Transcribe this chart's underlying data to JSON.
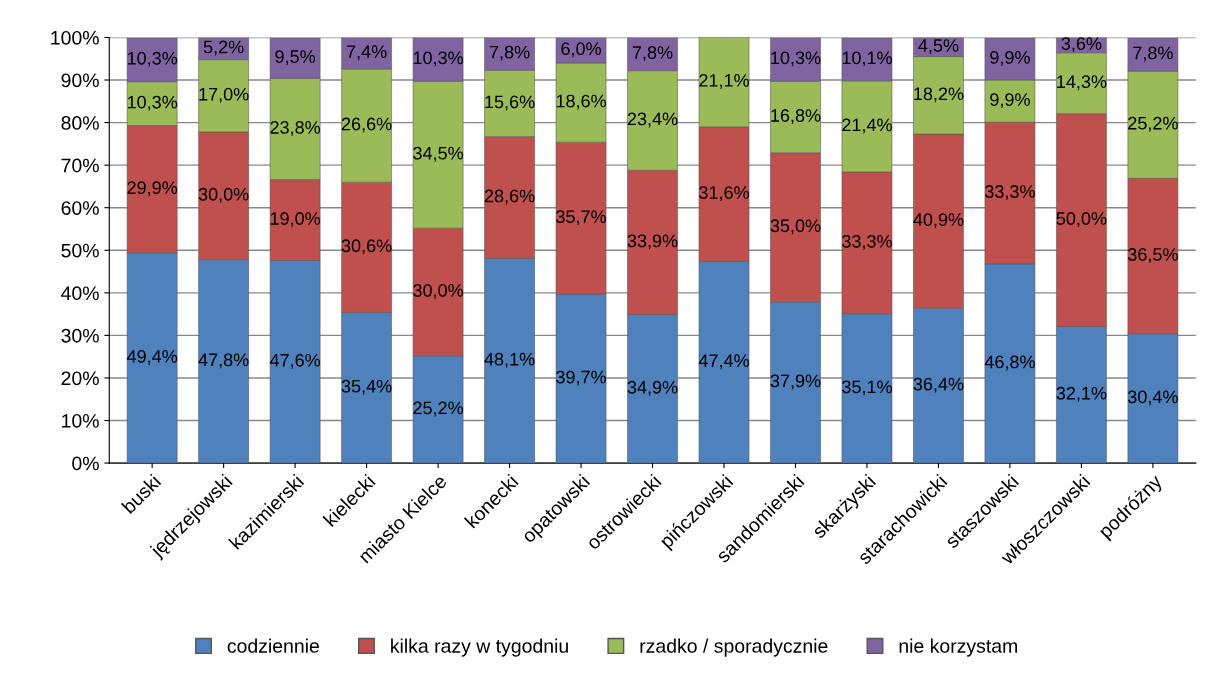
{
  "chart_data": {
    "type": "bar",
    "stacked": true,
    "categories": [
      "buski",
      "jędrzejowski",
      "kazimierski",
      "kielecki",
      "miasto Kielce",
      "konecki",
      "opatowski",
      "ostrowiecki",
      "pińczowski",
      "sandomierski",
      "skarżyski",
      "starachowicki",
      "staszowski",
      "włoszczowski",
      "podróżny"
    ],
    "series": [
      {
        "name": "codziennie",
        "color": "#4f81bd",
        "values": [
          49.4,
          47.8,
          47.6,
          35.4,
          25.2,
          48.1,
          39.7,
          34.9,
          47.4,
          37.9,
          35.1,
          36.4,
          46.8,
          32.1,
          30.4
        ],
        "value_labels": [
          "49,4%",
          "47,8%",
          "47,6%",
          "35,4%",
          "25,2%",
          "48,1%",
          "39,7%",
          "34,9%",
          "47,4%",
          "37,9%",
          "35,1%",
          "36,4%",
          "46,8%",
          "32,1%",
          "30,4%"
        ]
      },
      {
        "name": "kilka razy w tygodniu",
        "color": "#c0504d",
        "values": [
          29.9,
          30.0,
          19.0,
          30.6,
          30.0,
          28.6,
          35.7,
          33.9,
          31.6,
          35.0,
          33.3,
          40.9,
          33.3,
          50.0,
          36.5
        ],
        "value_labels": [
          "29,9%",
          "30,0%",
          "19,0%",
          "30,6%",
          "30,0%",
          "28,6%",
          "35,7%",
          "33,9%",
          "31,6%",
          "35,0%",
          "33,3%",
          "40,9%",
          "33,3%",
          "50,0%",
          "36,5%"
        ]
      },
      {
        "name": "rzadko / sporadycznie",
        "color": "#9bbb59",
        "values": [
          10.3,
          17.0,
          23.8,
          26.6,
          34.5,
          15.6,
          18.6,
          23.4,
          21.1,
          16.8,
          21.4,
          18.2,
          9.9,
          14.3,
          25.2
        ],
        "value_labels": [
          "10,3%",
          "17,0%",
          "23,8%",
          "26,6%",
          "34,5%",
          "15,6%",
          "18,6%",
          "23,4%",
          "21,1%",
          "16,8%",
          "21,4%",
          "18,2%",
          "9,9%",
          "14,3%",
          "25,2%"
        ]
      },
      {
        "name": "nie korzystam",
        "color": "#8064a2",
        "values": [
          10.3,
          5.2,
          9.5,
          7.4,
          10.3,
          7.8,
          6.0,
          7.8,
          null,
          10.3,
          10.1,
          4.5,
          9.9,
          3.6,
          7.8
        ],
        "value_labels": [
          "10,3%",
          "5,2%",
          "9,5%",
          "7,4%",
          "10,3%",
          "7,8%",
          "6,0%",
          "7,8%",
          null,
          "10,3%",
          "10,1%",
          "4,5%",
          "9,9%",
          "3,6%",
          "7,8%"
        ]
      }
    ],
    "ylim": [
      0,
      100
    ],
    "yticks": [
      {
        "value": 0,
        "label": "0%"
      },
      {
        "value": 10,
        "label": "10%"
      },
      {
        "value": 20,
        "label": "20%"
      },
      {
        "value": 30,
        "label": "30%"
      },
      {
        "value": 40,
        "label": "40%"
      },
      {
        "value": 50,
        "label": "50%"
      },
      {
        "value": 60,
        "label": "60%"
      },
      {
        "value": 70,
        "label": "70%"
      },
      {
        "value": 80,
        "label": "80%"
      },
      {
        "value": 90,
        "label": "90%"
      },
      {
        "value": 100,
        "label": "100%"
      }
    ],
    "grid": "y",
    "legend": "bottom"
  }
}
